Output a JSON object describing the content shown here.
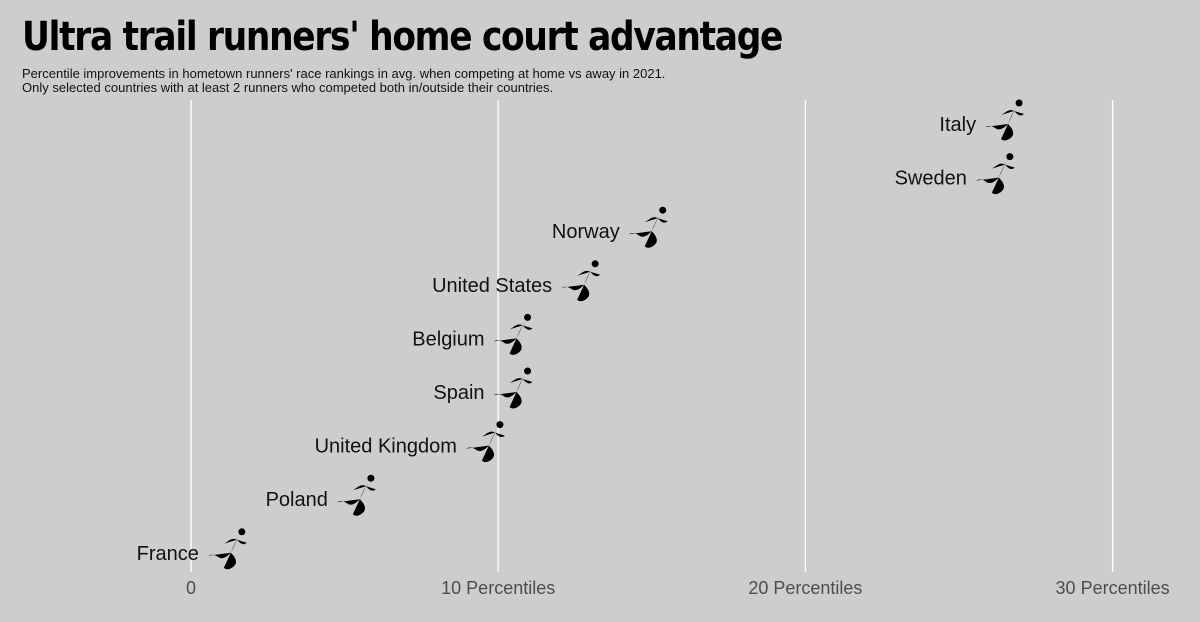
{
  "header": {
    "title": "Ultra trail runners' home court advantage",
    "subtitle_line1": "Percentile improvements in hometown runners' race rankings in avg. when competing at home vs away in 2021.",
    "subtitle_line2": "Only selected countries with at least 2 runners who competed both in/outside their countries."
  },
  "chart_data": {
    "type": "scatter",
    "title": "Ultra trail runners' home court advantage",
    "xlabel": "",
    "ylabel": "",
    "xlim": [
      -0.5,
      32.5
    ],
    "grid": true,
    "marker": "runner-icon",
    "x_ticks": [
      {
        "value": 0,
        "label": "0"
      },
      {
        "value": 10,
        "label": "10 Percentiles"
      },
      {
        "value": 20,
        "label": "20 Percentiles"
      },
      {
        "value": 30,
        "label": "30 Percentiles"
      }
    ],
    "points": [
      {
        "country": "Italy",
        "value": 26.5
      },
      {
        "country": "Sweden",
        "value": 26.2
      },
      {
        "country": "Norway",
        "value": 14.9
      },
      {
        "country": "United States",
        "value": 12.7
      },
      {
        "country": "Belgium",
        "value": 10.5
      },
      {
        "country": "Spain",
        "value": 10.5
      },
      {
        "country": "United Kingdom",
        "value": 9.6
      },
      {
        "country": "Poland",
        "value": 5.4
      },
      {
        "country": "France",
        "value": 1.2
      }
    ]
  }
}
